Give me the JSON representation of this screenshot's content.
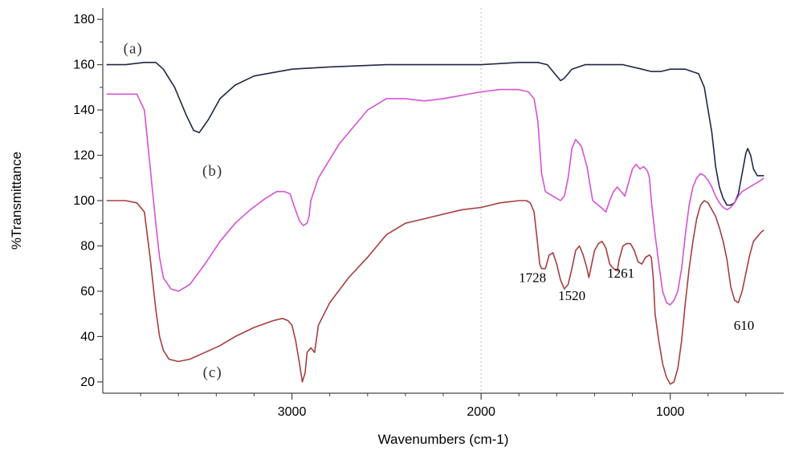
{
  "chart_data": {
    "type": "line",
    "title": "",
    "xlabel": "Wavenumbers (cm-1)",
    "ylabel": "%Transmittance",
    "xlim": [
      4000,
      400
    ],
    "ylim": [
      15,
      185
    ],
    "x_reversed": true,
    "grid": false,
    "x_ticks": [
      3000,
      2000,
      1000
    ],
    "x_tick_labels": [
      "3000",
      "2000",
      "1000"
    ],
    "y_ticks": [
      20,
      40,
      60,
      80,
      100,
      120,
      140,
      160,
      180
    ],
    "y_tick_labels": [
      "20",
      "40",
      "60",
      "80",
      "100",
      "120",
      "140",
      "160",
      "180"
    ],
    "reference_line_x": 2000,
    "series": [
      {
        "name": "(a)",
        "color": "#1f2748",
        "points": [
          [
            3980,
            160
          ],
          [
            3880,
            160
          ],
          [
            3780,
            161
          ],
          [
            3720,
            161
          ],
          [
            3680,
            158
          ],
          [
            3620,
            150
          ],
          [
            3560,
            138
          ],
          [
            3520,
            131
          ],
          [
            3490,
            130
          ],
          [
            3440,
            136
          ],
          [
            3380,
            145
          ],
          [
            3300,
            151
          ],
          [
            3200,
            155
          ],
          [
            3000,
            158
          ],
          [
            2800,
            159
          ],
          [
            2500,
            160
          ],
          [
            2300,
            160
          ],
          [
            2000,
            160
          ],
          [
            1800,
            161
          ],
          [
            1700,
            161
          ],
          [
            1650,
            160
          ],
          [
            1600,
            155
          ],
          [
            1580,
            153
          ],
          [
            1560,
            154
          ],
          [
            1520,
            158
          ],
          [
            1450,
            160
          ],
          [
            1350,
            160
          ],
          [
            1250,
            160
          ],
          [
            1150,
            158
          ],
          [
            1100,
            157
          ],
          [
            1050,
            157
          ],
          [
            1000,
            158
          ],
          [
            920,
            158
          ],
          [
            850,
            156
          ],
          [
            820,
            150
          ],
          [
            800,
            140
          ],
          [
            780,
            130
          ],
          [
            760,
            115
          ],
          [
            740,
            106
          ],
          [
            720,
            101
          ],
          [
            700,
            98
          ],
          [
            680,
            98
          ],
          [
            660,
            99
          ],
          [
            640,
            103
          ],
          [
            620,
            112
          ],
          [
            600,
            121
          ],
          [
            590,
            123
          ],
          [
            575,
            120
          ],
          [
            560,
            114
          ],
          [
            540,
            111
          ],
          [
            505,
            111
          ]
        ]
      },
      {
        "name": "(b)",
        "color": "#d454d4",
        "points": [
          [
            3980,
            147
          ],
          [
            3880,
            147
          ],
          [
            3820,
            147
          ],
          [
            3780,
            140
          ],
          [
            3750,
            115
          ],
          [
            3720,
            90
          ],
          [
            3700,
            75
          ],
          [
            3680,
            66
          ],
          [
            3640,
            61
          ],
          [
            3600,
            60
          ],
          [
            3540,
            63
          ],
          [
            3460,
            72
          ],
          [
            3380,
            82
          ],
          [
            3300,
            90
          ],
          [
            3220,
            96
          ],
          [
            3140,
            101
          ],
          [
            3080,
            104
          ],
          [
            3040,
            104
          ],
          [
            3010,
            103
          ],
          [
            2990,
            98
          ],
          [
            2960,
            91
          ],
          [
            2940,
            89
          ],
          [
            2920,
            90
          ],
          [
            2910,
            93
          ],
          [
            2900,
            100
          ],
          [
            2860,
            110
          ],
          [
            2750,
            125
          ],
          [
            2600,
            140
          ],
          [
            2500,
            145
          ],
          [
            2400,
            145
          ],
          [
            2300,
            144
          ],
          [
            2200,
            145
          ],
          [
            2000,
            148
          ],
          [
            1900,
            149
          ],
          [
            1800,
            149
          ],
          [
            1750,
            148
          ],
          [
            1720,
            145
          ],
          [
            1700,
            135
          ],
          [
            1680,
            112
          ],
          [
            1660,
            104
          ],
          [
            1620,
            102
          ],
          [
            1580,
            100
          ],
          [
            1560,
            102
          ],
          [
            1540,
            110
          ],
          [
            1520,
            123
          ],
          [
            1500,
            127
          ],
          [
            1470,
            124
          ],
          [
            1440,
            115
          ],
          [
            1420,
            105
          ],
          [
            1410,
            100
          ],
          [
            1380,
            98
          ],
          [
            1340,
            95
          ],
          [
            1320,
            100
          ],
          [
            1300,
            104
          ],
          [
            1280,
            106
          ],
          [
            1240,
            102
          ],
          [
            1220,
            108
          ],
          [
            1200,
            114
          ],
          [
            1180,
            116
          ],
          [
            1160,
            114
          ],
          [
            1140,
            115
          ],
          [
            1120,
            113
          ],
          [
            1110,
            110
          ],
          [
            1100,
            100
          ],
          [
            1080,
            85
          ],
          [
            1060,
            72
          ],
          [
            1040,
            60
          ],
          [
            1020,
            55
          ],
          [
            1000,
            54
          ],
          [
            980,
            56
          ],
          [
            960,
            60
          ],
          [
            940,
            70
          ],
          [
            920,
            85
          ],
          [
            900,
            98
          ],
          [
            880,
            106
          ],
          [
            860,
            110
          ],
          [
            840,
            112
          ],
          [
            820,
            111
          ],
          [
            800,
            109
          ],
          [
            780,
            106
          ],
          [
            760,
            102
          ],
          [
            740,
            99
          ],
          [
            720,
            97
          ],
          [
            700,
            96
          ],
          [
            680,
            97
          ],
          [
            660,
            99
          ],
          [
            640,
            102
          ],
          [
            620,
            104
          ],
          [
            600,
            105
          ],
          [
            580,
            106
          ],
          [
            560,
            107
          ],
          [
            540,
            108
          ],
          [
            520,
            109
          ],
          [
            505,
            110
          ]
        ]
      },
      {
        "name": "(c)",
        "color": "#a63e3e",
        "points": [
          [
            3980,
            100
          ],
          [
            3880,
            100
          ],
          [
            3820,
            99
          ],
          [
            3780,
            95
          ],
          [
            3750,
            75
          ],
          [
            3720,
            52
          ],
          [
            3700,
            40
          ],
          [
            3680,
            34
          ],
          [
            3650,
            30
          ],
          [
            3600,
            29
          ],
          [
            3540,
            30
          ],
          [
            3460,
            33
          ],
          [
            3380,
            36
          ],
          [
            3300,
            40
          ],
          [
            3200,
            44
          ],
          [
            3100,
            47
          ],
          [
            3050,
            48
          ],
          [
            3020,
            47
          ],
          [
            3000,
            45
          ],
          [
            2980,
            38
          ],
          [
            2960,
            28
          ],
          [
            2945,
            20
          ],
          [
            2930,
            24
          ],
          [
            2920,
            33
          ],
          [
            2900,
            35
          ],
          [
            2880,
            33
          ],
          [
            2860,
            45
          ],
          [
            2800,
            55
          ],
          [
            2700,
            66
          ],
          [
            2600,
            75
          ],
          [
            2500,
            85
          ],
          [
            2400,
            90
          ],
          [
            2300,
            92
          ],
          [
            2200,
            94
          ],
          [
            2100,
            96
          ],
          [
            2000,
            97
          ],
          [
            1900,
            99
          ],
          [
            1800,
            100
          ],
          [
            1760,
            100
          ],
          [
            1740,
            99
          ],
          [
            1720,
            95
          ],
          [
            1700,
            80
          ],
          [
            1690,
            72
          ],
          [
            1680,
            70
          ],
          [
            1660,
            70
          ],
          [
            1640,
            76
          ],
          [
            1620,
            77
          ],
          [
            1600,
            72
          ],
          [
            1580,
            65
          ],
          [
            1560,
            61
          ],
          [
            1540,
            63
          ],
          [
            1520,
            70
          ],
          [
            1500,
            78
          ],
          [
            1480,
            80
          ],
          [
            1460,
            76
          ],
          [
            1440,
            70
          ],
          [
            1430,
            66
          ],
          [
            1420,
            70
          ],
          [
            1400,
            78
          ],
          [
            1380,
            81
          ],
          [
            1360,
            82
          ],
          [
            1340,
            79
          ],
          [
            1320,
            72
          ],
          [
            1300,
            70
          ],
          [
            1280,
            69
          ],
          [
            1270,
            74
          ],
          [
            1250,
            80
          ],
          [
            1230,
            81
          ],
          [
            1210,
            81
          ],
          [
            1190,
            78
          ],
          [
            1170,
            73
          ],
          [
            1150,
            72
          ],
          [
            1130,
            75
          ],
          [
            1110,
            76
          ],
          [
            1100,
            75
          ],
          [
            1090,
            66
          ],
          [
            1080,
            50
          ],
          [
            1060,
            38
          ],
          [
            1040,
            28
          ],
          [
            1020,
            22
          ],
          [
            1000,
            19
          ],
          [
            980,
            20
          ],
          [
            960,
            26
          ],
          [
            940,
            38
          ],
          [
            920,
            55
          ],
          [
            900,
            70
          ],
          [
            880,
            82
          ],
          [
            860,
            92
          ],
          [
            840,
            98
          ],
          [
            820,
            100
          ],
          [
            800,
            99
          ],
          [
            780,
            96
          ],
          [
            760,
            93
          ],
          [
            740,
            88
          ],
          [
            720,
            82
          ],
          [
            700,
            74
          ],
          [
            680,
            62
          ],
          [
            660,
            56
          ],
          [
            640,
            55
          ],
          [
            620,
            60
          ],
          [
            600,
            68
          ],
          [
            580,
            76
          ],
          [
            560,
            82
          ],
          [
            540,
            84
          ],
          [
            520,
            86
          ],
          [
            505,
            87
          ]
        ]
      }
    ],
    "annotations": [
      {
        "text": "1728",
        "x": 1728,
        "y": 64
      },
      {
        "text": "1520",
        "x": 1520,
        "y": 56
      },
      {
        "text": "1261",
        "x": 1261,
        "y": 66
      },
      {
        "text": "610",
        "x": 610,
        "y": 43
      }
    ],
    "series_labels": [
      {
        "text": "(a)",
        "x": 3840,
        "y": 165
      },
      {
        "text": "(b)",
        "x": 3420,
        "y": 111
      },
      {
        "text": "(c)",
        "x": 3420,
        "y": 22
      }
    ]
  }
}
